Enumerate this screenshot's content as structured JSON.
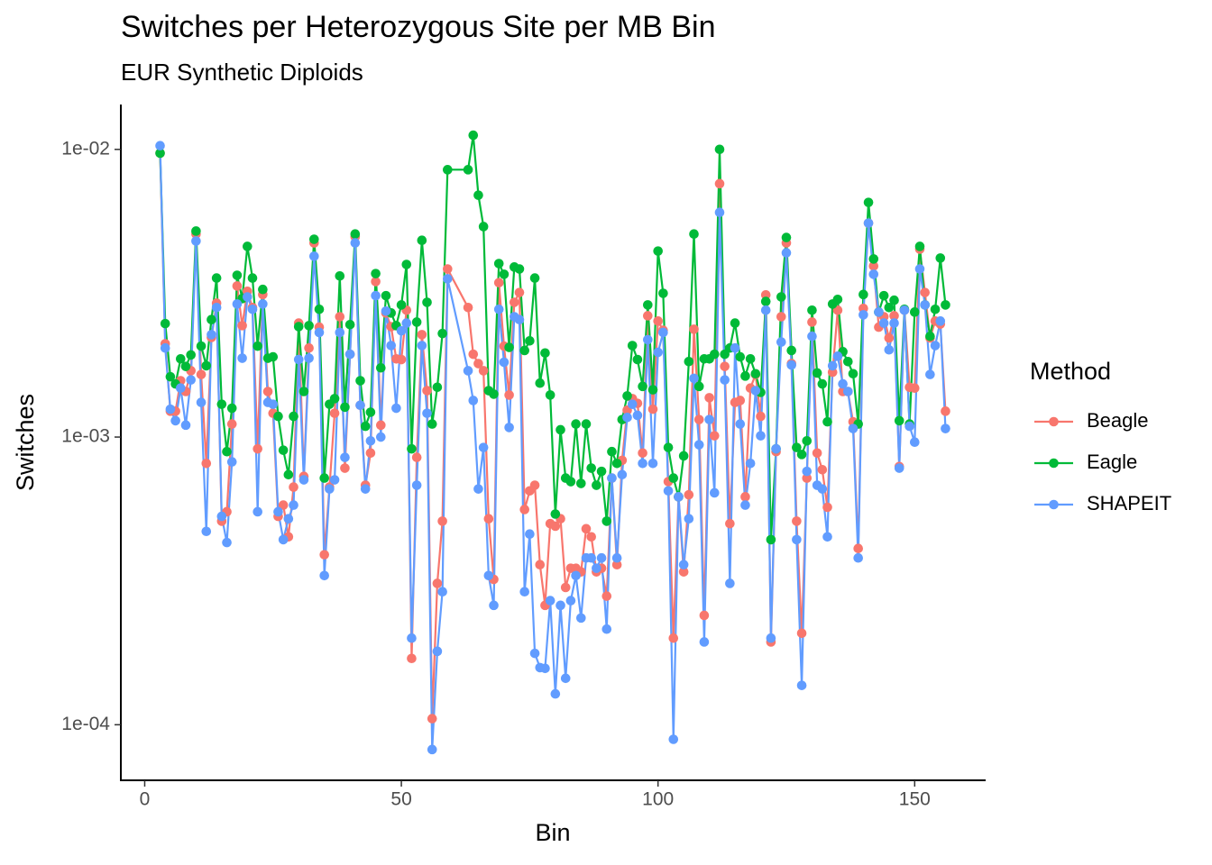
{
  "chart_data": {
    "type": "line",
    "title": "Switches per Heterozygous Site per MB Bin",
    "subtitle": "EUR Synthetic Diploids",
    "x_label": "Bin",
    "y_label": "Switches",
    "yscale": "log",
    "grid": false,
    "legend": {
      "title": "Method",
      "position": "right"
    },
    "xlim": [
      -4.65,
      163.65
    ],
    "xticks": [
      0,
      50,
      100,
      150
    ],
    "ylim": [
      6.41e-05,
      0.01432
    ],
    "yticks": [
      {
        "value": 0.01,
        "label": "1e-02"
      },
      {
        "value": 0.001,
        "label": "1e-03"
      },
      {
        "value": 0.0001,
        "label": "1e-04"
      }
    ],
    "x": [
      3,
      4,
      5,
      6,
      7,
      8,
      9,
      10,
      11,
      12,
      13,
      14,
      15,
      16,
      17,
      18,
      19,
      20,
      21,
      22,
      23,
      24,
      25,
      26,
      27,
      28,
      29,
      30,
      31,
      32,
      33,
      34,
      35,
      36,
      37,
      38,
      39,
      40,
      41,
      42,
      43,
      44,
      45,
      46,
      47,
      48,
      49,
      50,
      51,
      52,
      53,
      54,
      55,
      56,
      57,
      58,
      59,
      63,
      64,
      65,
      66,
      67,
      68,
      69,
      70,
      71,
      72,
      73,
      74,
      75,
      76,
      77,
      78,
      79,
      80,
      81,
      82,
      83,
      84,
      85,
      86,
      87,
      88,
      89,
      90,
      91,
      92,
      93,
      94,
      95,
      96,
      97,
      98,
      99,
      100,
      101,
      102,
      103,
      104,
      105,
      106,
      107,
      108,
      109,
      110,
      111,
      112,
      113,
      114,
      115,
      116,
      117,
      118,
      119,
      120,
      121,
      122,
      123,
      124,
      125,
      126,
      127,
      128,
      129,
      130,
      131,
      132,
      133,
      134,
      135,
      136,
      137,
      138,
      139,
      140,
      141,
      142,
      143,
      144,
      145,
      146,
      147,
      148,
      149,
      150,
      151,
      152,
      153,
      154,
      155,
      156
    ],
    "series": [
      {
        "name": "Beagle",
        "color": "#F8766D",
        "values": [
          0.0097,
          0.00211,
          0.00123,
          0.00123,
          0.00157,
          0.00144,
          0.0017,
          0.00508,
          0.00165,
          0.00081,
          0.00222,
          0.00292,
          0.00051,
          0.00055,
          0.00111,
          0.00335,
          0.00244,
          0.00321,
          0.00282,
          0.00091,
          0.00313,
          0.00144,
          0.00121,
          0.00053,
          0.00058,
          0.00045,
          0.00067,
          0.00249,
          0.00073,
          0.00204,
          0.00473,
          0.00241,
          0.00039,
          0.00067,
          0.00121,
          0.00262,
          0.00078,
          0.00194,
          0.00497,
          0.00129,
          0.00068,
          0.00088,
          0.00347,
          0.0011,
          0.0027,
          0.00242,
          0.00187,
          0.00186,
          0.00276,
          0.00017,
          0.00085,
          0.00227,
          0.00145,
          0.000105,
          0.00031,
          0.00051,
          0.00384,
          0.00282,
          0.00194,
          0.0018,
          0.0017,
          0.00052,
          0.00032,
          0.00344,
          0.00207,
          0.0014,
          0.00294,
          0.00318,
          0.00056,
          0.00065,
          0.00068,
          0.00036,
          0.00026,
          0.0005,
          0.00049,
          0.00052,
          0.0003,
          0.00035,
          0.00035,
          0.00034,
          0.00048,
          0.00045,
          0.00034,
          0.00035,
          0.00028,
          0.00072,
          0.00036,
          0.00083,
          0.00124,
          0.00136,
          0.00131,
          0.00088,
          0.00264,
          0.00125,
          0.00253,
          0.00235,
          0.0007,
          0.0002,
          0.00062,
          0.00034,
          0.00063,
          0.00237,
          0.00115,
          0.00024,
          0.00137,
          0.00101,
          0.0076,
          0.00176,
          0.0005,
          0.00132,
          0.00134,
          0.00062,
          0.00148,
          0.00165,
          0.00118,
          0.00312,
          0.000194,
          0.00089,
          0.00262,
          0.00473,
          0.0018,
          0.00051,
          0.000208,
          0.00072,
          0.00251,
          0.00088,
          0.00077,
          0.00057,
          0.00168,
          0.00276,
          0.00144,
          0.00144,
          0.00113,
          0.00041,
          0.0028,
          0.00554,
          0.00393,
          0.00241,
          0.00262,
          0.00221,
          0.00264,
          0.00079,
          0.00276,
          0.00149,
          0.00148,
          0.0045,
          0.00318,
          0.00221,
          0.00253,
          0.00247,
          0.00123
        ]
      },
      {
        "name": "Eagle",
        "color": "#00BA38",
        "values": [
          0.0097,
          0.00248,
          0.00162,
          0.00153,
          0.00187,
          0.00176,
          0.00193,
          0.0052,
          0.00207,
          0.00177,
          0.00256,
          0.00357,
          0.0013,
          0.00089,
          0.00126,
          0.00365,
          0.00303,
          0.0046,
          0.00357,
          0.00207,
          0.00326,
          0.00188,
          0.0019,
          0.00118,
          0.0009,
          0.00074,
          0.00118,
          0.00242,
          0.00144,
          0.00244,
          0.00487,
          0.00278,
          0.00072,
          0.0013,
          0.00136,
          0.00363,
          0.00127,
          0.00246,
          0.00508,
          0.00157,
          0.00109,
          0.00122,
          0.0037,
          0.00174,
          0.0031,
          0.0027,
          0.00244,
          0.00288,
          0.00398,
          0.00091,
          0.00251,
          0.00483,
          0.00294,
          0.00111,
          0.00149,
          0.00229,
          0.0085,
          0.0085,
          0.0112,
          0.00693,
          0.00539,
          0.00145,
          0.00141,
          0.00401,
          0.00368,
          0.00205,
          0.0039,
          0.00384,
          0.002,
          0.00216,
          0.00357,
          0.00154,
          0.00196,
          0.0014,
          0.00054,
          0.00106,
          0.00072,
          0.0007,
          0.00111,
          0.00069,
          0.00111,
          0.00078,
          0.00068,
          0.00076,
          0.00051,
          0.00089,
          0.00081,
          0.00115,
          0.00139,
          0.00208,
          0.00186,
          0.0015,
          0.00288,
          0.00146,
          0.00443,
          0.00316,
          0.00092,
          0.00072,
          0.00062,
          0.00086,
          0.00183,
          0.00508,
          0.0015,
          0.00187,
          0.00187,
          0.00194,
          0.01,
          0.00194,
          0.00204,
          0.00249,
          0.0019,
          0.00163,
          0.00187,
          0.00166,
          0.00143,
          0.00296,
          0.00044,
          0.00091,
          0.00307,
          0.00494,
          0.002,
          0.00092,
          0.00087,
          0.00097,
          0.00276,
          0.00167,
          0.00153,
          0.00113,
          0.0029,
          0.00301,
          0.00198,
          0.00183,
          0.00166,
          0.00111,
          0.00313,
          0.00654,
          0.00416,
          0.00272,
          0.0031,
          0.00282,
          0.00299,
          0.00114,
          0.00278,
          0.00111,
          0.00272,
          0.0046,
          0.00288,
          0.00224,
          0.00278,
          0.00419,
          0.00288
        ]
      },
      {
        "name": "SHAPEIT",
        "color": "#619CFF",
        "values": [
          0.0103,
          0.00204,
          0.00125,
          0.00114,
          0.00148,
          0.0011,
          0.00158,
          0.0048,
          0.00132,
          0.00047,
          0.00227,
          0.00282,
          0.00053,
          0.00043,
          0.00082,
          0.0029,
          0.00188,
          0.00307,
          0.00278,
          0.00055,
          0.0029,
          0.00132,
          0.0013,
          0.00055,
          0.00044,
          0.00052,
          0.00058,
          0.00186,
          0.00071,
          0.00188,
          0.00425,
          0.00231,
          0.00033,
          0.00066,
          0.00071,
          0.00231,
          0.00085,
          0.00194,
          0.00473,
          0.00129,
          0.00066,
          0.00097,
          0.0031,
          0.001,
          0.00274,
          0.00208,
          0.00126,
          0.00234,
          0.00249,
          0.0002,
          0.00068,
          0.00208,
          0.00121,
          8.2e-05,
          0.00018,
          0.00029,
          0.00355,
          0.0017,
          0.00134,
          0.00066,
          0.00092,
          0.00033,
          0.00026,
          0.00278,
          0.00182,
          0.00108,
          0.00262,
          0.00256,
          0.00029,
          0.00046,
          0.000177,
          0.000158,
          0.000157,
          0.00027,
          0.000128,
          0.00026,
          0.000145,
          0.00027,
          0.00033,
          0.000235,
          0.00038,
          0.00038,
          0.00035,
          0.00038,
          0.000215,
          0.00072,
          0.00038,
          0.00074,
          0.00117,
          0.0013,
          0.00119,
          0.00081,
          0.00218,
          0.00081,
          0.00197,
          0.00231,
          0.00065,
          8.9e-05,
          0.00062,
          0.00036,
          0.00052,
          0.0016,
          0.00094,
          0.000194,
          0.00115,
          0.00064,
          0.00604,
          0.00158,
          0.00031,
          0.00204,
          0.00111,
          0.00058,
          0.00081,
          0.00145,
          0.00101,
          0.00276,
          0.0002,
          0.00091,
          0.00214,
          0.00437,
          0.00178,
          0.00044,
          0.000137,
          0.00076,
          0.00224,
          0.00068,
          0.00066,
          0.00045,
          0.00177,
          0.00191,
          0.00153,
          0.00144,
          0.00107,
          0.00038,
          0.00266,
          0.00554,
          0.00368,
          0.00272,
          0.00249,
          0.00201,
          0.00249,
          0.00078,
          0.00276,
          0.00109,
          0.00096,
          0.00384,
          0.00288,
          0.00165,
          0.00208,
          0.00253,
          0.00107
        ]
      }
    ]
  }
}
